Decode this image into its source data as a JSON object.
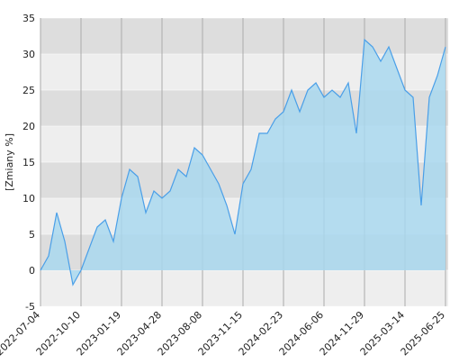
{
  "chart_data": {
    "type": "area",
    "y_label": "[Zmiany %]",
    "x": [
      "2022-07-04",
      "2022-07-22",
      "2022-08-11",
      "2022-08-31",
      "2022-09-20",
      "2022-10-10",
      "2022-10-30",
      "2022-11-19",
      "2022-12-09",
      "2022-12-29",
      "2023-01-19",
      "2023-02-08",
      "2023-02-28",
      "2023-03-20",
      "2023-04-08",
      "2023-04-28",
      "2023-05-18",
      "2023-06-07",
      "2023-06-27",
      "2023-07-18",
      "2023-08-08",
      "2023-08-28",
      "2023-09-17",
      "2023-10-07",
      "2023-10-26",
      "2023-11-15",
      "2023-12-05",
      "2023-12-25",
      "2024-01-14",
      "2024-02-03",
      "2024-02-23",
      "2024-03-14",
      "2024-04-04",
      "2024-04-25",
      "2024-05-16",
      "2024-06-06",
      "2024-07-11",
      "2024-08-15",
      "2024-09-19",
      "2024-10-24",
      "2024-11-29",
      "2024-12-20",
      "2025-01-10",
      "2025-01-31",
      "2025-02-21",
      "2025-03-14",
      "2025-04-03",
      "2025-04-23",
      "2025-05-14",
      "2025-06-04",
      "2025-06-25"
    ],
    "values": [
      0,
      2,
      8,
      4,
      -2,
      0,
      3,
      6,
      7,
      4,
      10,
      14,
      13,
      8,
      11,
      10,
      11,
      14,
      13,
      17,
      16,
      14,
      12,
      9,
      5,
      12,
      14,
      19,
      19,
      21,
      22,
      25,
      22,
      25,
      26,
      24,
      25,
      24,
      26,
      19,
      32,
      31,
      29,
      31,
      28,
      25,
      24,
      9,
      24,
      27,
      31
    ],
    "color": "#4a9fe8",
    "fill": "#a9d8ef",
    "ylim": [
      -5,
      35
    ],
    "yticks": [
      -5,
      0,
      5,
      10,
      15,
      20,
      25,
      30,
      35
    ],
    "grid": true
  }
}
